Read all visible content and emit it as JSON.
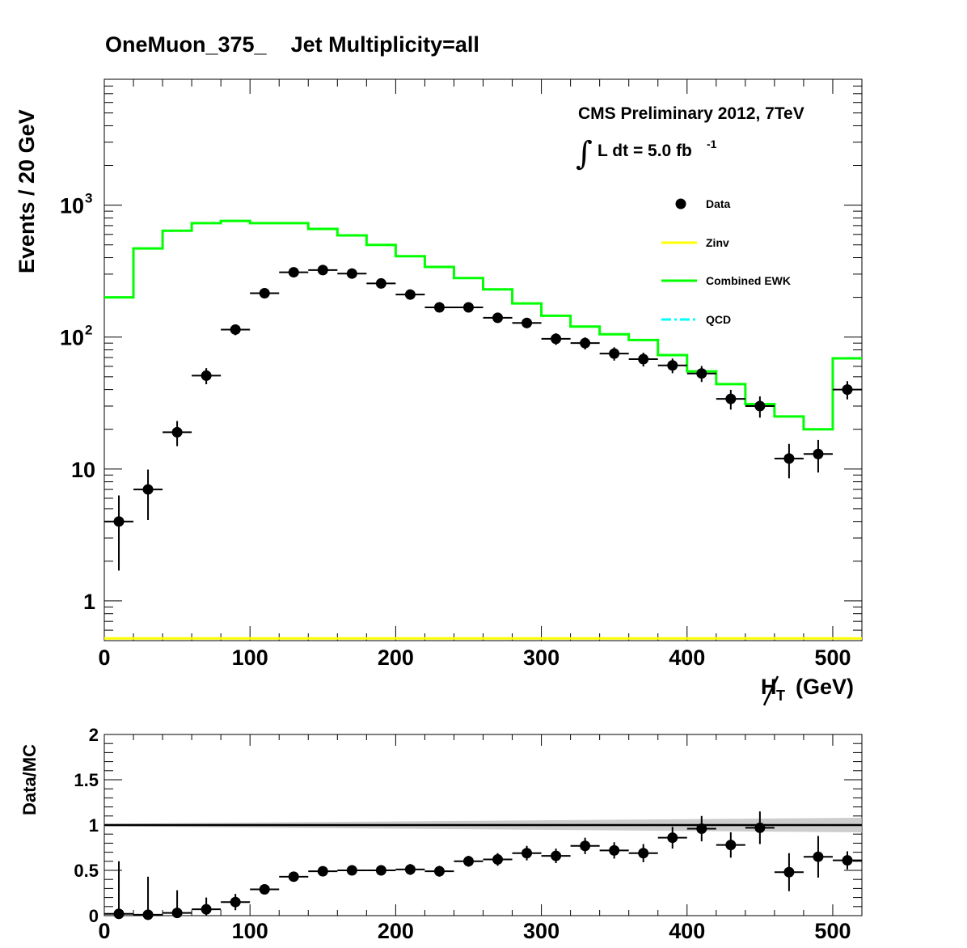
{
  "chart_data": [
    {
      "type": "line",
      "title": "OneMuon_375_    Jet Multiplicity=all",
      "xlabel": "H̸T (GeV)",
      "xlabel_main": "H",
      "xlabel_sub": "T",
      "xlabel_unit": "(GeV)",
      "ylabel": "Events / 20 GeV",
      "xlim": [
        0,
        520
      ],
      "ylim": [
        0.5,
        9000
      ],
      "yscale": "log",
      "xticks": [
        0,
        100,
        200,
        300,
        400,
        500
      ],
      "xtick_labels": [
        "0",
        "100",
        "200",
        "300",
        "400",
        "500"
      ],
      "yticks": [
        1,
        10,
        100,
        1000
      ],
      "ytick_labels": [
        {
          "base": "1",
          "exp": ""
        },
        {
          "base": "10",
          "exp": ""
        },
        {
          "base": "10",
          "exp": "2"
        },
        {
          "base": "10",
          "exp": "3"
        }
      ],
      "annotation_line1": "CMS Preliminary 2012, 7TeV",
      "annotation_int": "∫",
      "annotation_line2": "L dt = 5.0 fb",
      "annotation_line2_exp": "-1",
      "legend_position": "top-right",
      "series": [
        {
          "name": "Data",
          "kind": "points",
          "color": "#000000",
          "x": [
            10,
            30,
            50,
            70,
            90,
            110,
            130,
            150,
            170,
            190,
            210,
            230,
            250,
            270,
            290,
            310,
            330,
            350,
            370,
            390,
            410,
            430,
            450,
            470,
            490,
            510
          ],
          "values": [
            4,
            7,
            19,
            51,
            114,
            215,
            310,
            322,
            303,
            255,
            210,
            168,
            168,
            140,
            128,
            97,
            90,
            75,
            68,
            61,
            53,
            34,
            30,
            12,
            13,
            40
          ],
          "err_low": [
            2.3,
            2.9,
            4.1,
            7.1,
            10.7,
            14.7,
            17.6,
            17.9,
            17.4,
            16.0,
            14.5,
            13.0,
            13.0,
            11.8,
            11.3,
            9.8,
            9.5,
            8.7,
            8.2,
            7.8,
            7.3,
            5.8,
            5.5,
            3.5,
            3.6,
            6.3
          ],
          "err_high": [
            2.3,
            2.9,
            4.1,
            7.1,
            10.7,
            14.7,
            17.6,
            17.9,
            17.4,
            16.0,
            14.5,
            13.0,
            13.0,
            11.8,
            11.3,
            9.8,
            9.5,
            8.7,
            8.2,
            7.8,
            7.3,
            5.8,
            5.5,
            3.5,
            3.6,
            6.3
          ]
        },
        {
          "name": "Zinv",
          "kind": "step",
          "color": "#ffff00",
          "bin_edges": [
            0,
            520
          ],
          "values": [
            0.52
          ]
        },
        {
          "name": "Combined EWK",
          "kind": "step",
          "color": "#00ff00",
          "bin_edges": [
            0,
            20,
            40,
            60,
            80,
            100,
            120,
            140,
            160,
            180,
            200,
            220,
            240,
            260,
            280,
            300,
            320,
            340,
            360,
            380,
            400,
            420,
            440,
            460,
            480,
            500,
            520
          ],
          "values": [
            200,
            470,
            640,
            730,
            760,
            730,
            730,
            660,
            590,
            500,
            410,
            340,
            280,
            230,
            180,
            145,
            120,
            105,
            95,
            73,
            55,
            44,
            31,
            25,
            20,
            69
          ]
        },
        {
          "name": "QCD",
          "kind": "step",
          "color": "#00ffff",
          "bin_edges": [],
          "values": []
        }
      ]
    },
    {
      "type": "scatter",
      "title": "",
      "xlabel": "",
      "ylabel": "Data/MC",
      "xlim": [
        0,
        520
      ],
      "ylim": [
        0,
        2
      ],
      "xticks": [
        0,
        100,
        200,
        300,
        400,
        500
      ],
      "xtick_labels": [
        "0",
        "100",
        "200",
        "300",
        "400",
        "500"
      ],
      "yticks": [
        0,
        0.5,
        1,
        1.5,
        2
      ],
      "ytick_labels": [
        "0",
        "0.5",
        "1",
        "1.5",
        "2"
      ],
      "reference_line": 1,
      "series": [
        {
          "name": "",
          "kind": "points",
          "color": "#000000",
          "x": [
            10,
            30,
            50,
            70,
            90,
            110,
            130,
            150,
            170,
            190,
            210,
            230,
            250,
            270,
            290,
            310,
            330,
            350,
            370,
            390,
            410,
            430,
            450,
            470,
            490,
            510
          ],
          "values": [
            0.02,
            0.01,
            0.03,
            0.07,
            0.15,
            0.29,
            0.43,
            0.49,
            0.5,
            0.5,
            0.51,
            0.49,
            0.6,
            0.62,
            0.69,
            0.66,
            0.77,
            0.72,
            0.69,
            0.86,
            0.96,
            0.78,
            0.97,
            0.48,
            0.65,
            0.61
          ],
          "err": [
            0.58,
            0.42,
            0.25,
            0.13,
            0.09,
            0.05,
            0.04,
            0.04,
            0.04,
            0.04,
            0.06,
            0.06,
            0.06,
            0.07,
            0.08,
            0.08,
            0.09,
            0.09,
            0.1,
            0.12,
            0.14,
            0.14,
            0.18,
            0.21,
            0.23,
            0.1
          ]
        }
      ],
      "mc_uncertainty_band": {
        "color": "#b8b8b8",
        "x": [
          0,
          520
        ],
        "half_width_start": 0.015,
        "half_width_end": 0.08
      }
    }
  ]
}
